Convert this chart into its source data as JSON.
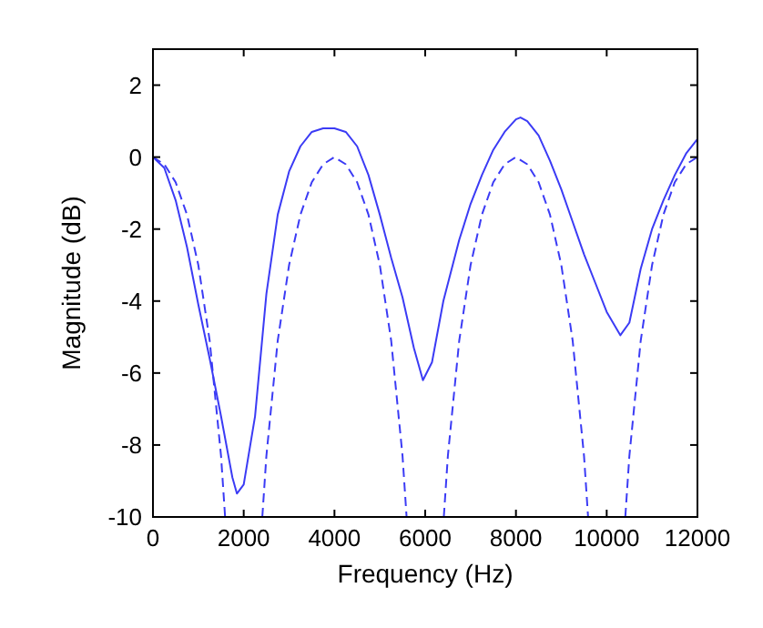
{
  "chart_data": {
    "type": "line",
    "xlabel": "Frequency (Hz)",
    "ylabel": "Magnitude (dB)",
    "xlim": [
      0,
      12000
    ],
    "ylim": [
      -10,
      3
    ],
    "xticks": [
      0,
      2000,
      4000,
      6000,
      8000,
      10000,
      12000
    ],
    "yticks": [
      -10,
      -8,
      -6,
      -4,
      -2,
      0,
      2
    ],
    "series": [
      {
        "color": "#3b3bf5",
        "line_style": "solid",
        "x": [
          0,
          250,
          500,
          750,
          1000,
          1250,
          1500,
          1750,
          1850,
          2000,
          2250,
          2500,
          2750,
          3000,
          3250,
          3500,
          3750,
          4000,
          4250,
          4500,
          4750,
          5000,
          5250,
          5500,
          5750,
          5950,
          6150,
          6400,
          6750,
          7000,
          7250,
          7500,
          7750,
          8000,
          8100,
          8250,
          8500,
          8750,
          9000,
          9250,
          9500,
          9750,
          10000,
          10300,
          10500,
          10750,
          11000,
          11250,
          11500,
          11750,
          12000
        ],
        "values": [
          0,
          -0.3,
          -1.2,
          -2.5,
          -4.1,
          -5.6,
          -7.2,
          -8.9,
          -9.35,
          -9.1,
          -7.2,
          -3.8,
          -1.6,
          -0.4,
          0.3,
          0.7,
          0.8,
          0.8,
          0.7,
          0.3,
          -0.5,
          -1.6,
          -2.8,
          -3.9,
          -5.3,
          -6.2,
          -5.7,
          -4,
          -2.3,
          -1.3,
          -0.5,
          0.2,
          0.7,
          1.05,
          1.1,
          1,
          0.6,
          -0.1,
          -0.9,
          -1.8,
          -2.7,
          -3.5,
          -4.3,
          -4.95,
          -4.6,
          -3.1,
          -2,
          -1.2,
          -0.5,
          0.1,
          0.5
        ]
      },
      {
        "color": "#3b3bf5",
        "line_style": "dashed",
        "x": [
          0,
          250,
          500,
          750,
          1000,
          1250,
          1500,
          1590,
          2000,
          2410,
          2500,
          2750,
          3000,
          3250,
          3500,
          3750,
          4000,
          4250,
          4500,
          4750,
          5000,
          5250,
          5500,
          5590,
          6000,
          6410,
          6500,
          6750,
          7000,
          7250,
          7500,
          7750,
          8000,
          8250,
          8500,
          8750,
          9000,
          9250,
          9500,
          9590,
          10000,
          10410,
          10500,
          10750,
          11000,
          11250,
          11500,
          11750,
          12000
        ],
        "values": [
          0,
          -0.2,
          -0.7,
          -1.6,
          -3,
          -5.1,
          -8.3,
          -10,
          null,
          -10,
          -8.3,
          -5.1,
          -3,
          -1.6,
          -0.7,
          -0.2,
          0,
          -0.2,
          -0.7,
          -1.6,
          -3,
          -5.1,
          -8.3,
          -10,
          null,
          -10,
          -8.3,
          -5.1,
          -3,
          -1.6,
          -0.7,
          -0.2,
          0,
          -0.2,
          -0.7,
          -1.6,
          -3,
          -5.1,
          -8.3,
          -10,
          null,
          -10,
          -8.3,
          -5.1,
          -3,
          -1.6,
          -0.7,
          -0.2,
          0
        ]
      }
    ]
  }
}
